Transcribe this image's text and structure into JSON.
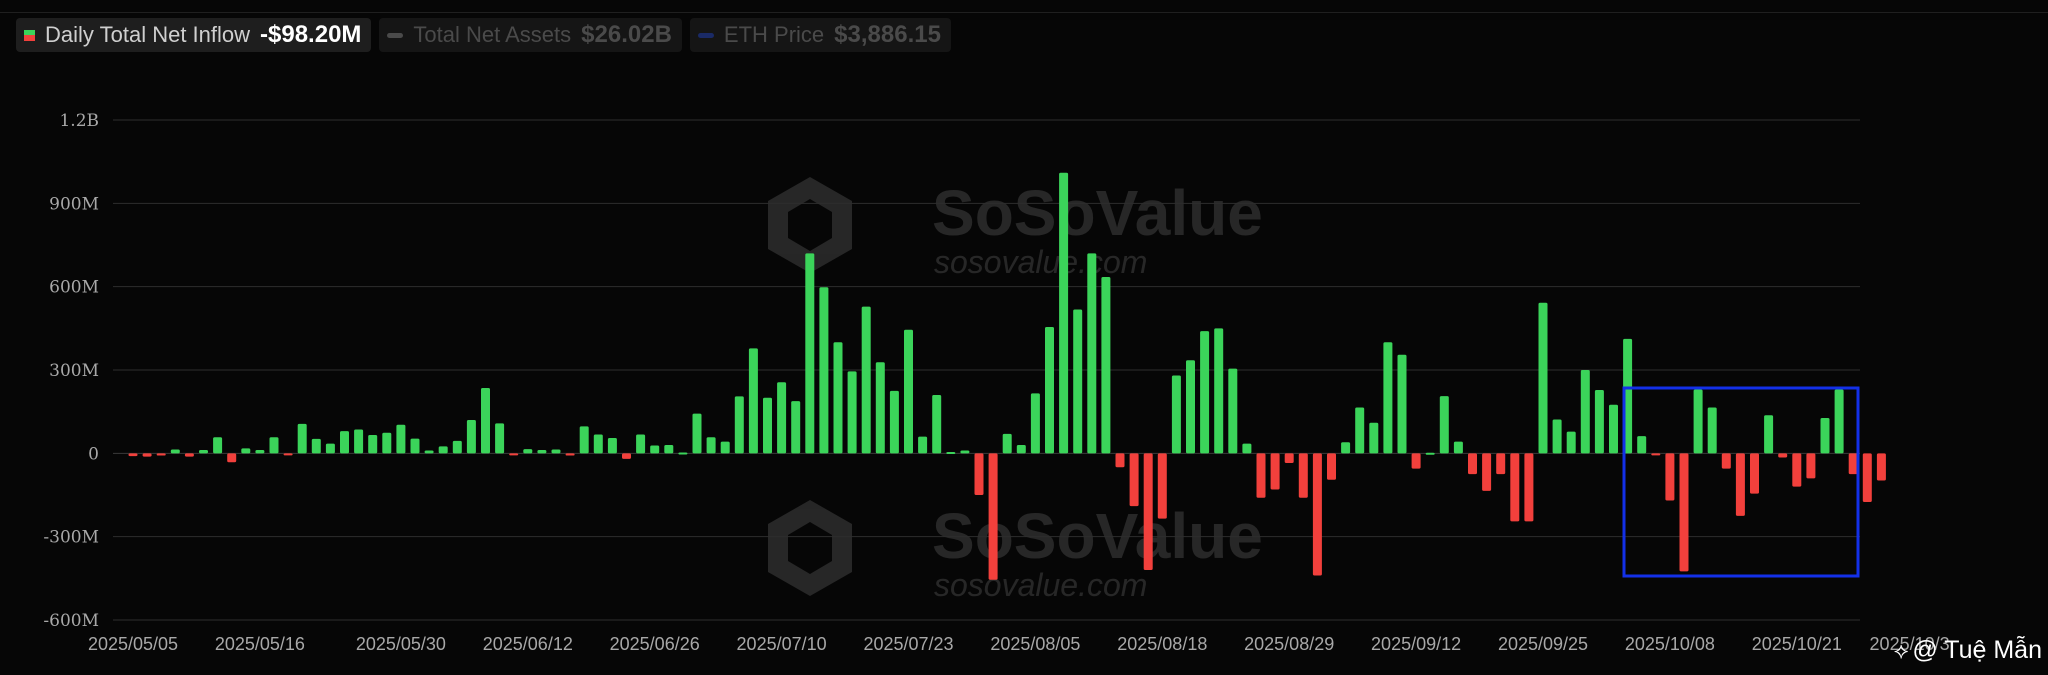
{
  "legend": [
    {
      "label": "Daily Total Net Inflow",
      "value": "-$98.20M",
      "active": true
    },
    {
      "label": "Total Net Assets",
      "value": "$26.02B",
      "active": false
    },
    {
      "label": "ETH Price",
      "value": "$3,886.15",
      "active": false
    }
  ],
  "watermark": {
    "brand": "SoSoValue",
    "site": "sosovalue.com"
  },
  "credit": {
    "icon": "binance-diamond-icon",
    "text": "@ Tuệ Mẫn"
  },
  "colors": {
    "positive": "#3bd45a",
    "negative": "#f2403c",
    "highlight": "#1330e8",
    "background": "#060606",
    "grid": "#2e2e2e",
    "tick": "#a8a8a8"
  },
  "chart_data": {
    "type": "bar",
    "title": "",
    "xlabel": "",
    "ylabel": "",
    "ylim": [
      -600000000,
      1200000000
    ],
    "yticks": [
      {
        "value": 1200000000,
        "label": "1.2B"
      },
      {
        "value": 900000000,
        "label": "900M"
      },
      {
        "value": 600000000,
        "label": "600M"
      },
      {
        "value": 300000000,
        "label": "300M"
      },
      {
        "value": 0,
        "label": "0"
      },
      {
        "value": -300000000,
        "label": "-300M"
      },
      {
        "value": -600000000,
        "label": "-600M"
      }
    ],
    "xticks": [
      {
        "index": 0,
        "label": "2025/05/05"
      },
      {
        "index": 9,
        "label": "2025/05/16"
      },
      {
        "index": 19,
        "label": "2025/05/30"
      },
      {
        "index": 28,
        "label": "2025/06/12"
      },
      {
        "index": 37,
        "label": "2025/06/26"
      },
      {
        "index": 46,
        "label": "2025/07/10"
      },
      {
        "index": 55,
        "label": "2025/07/23"
      },
      {
        "index": 64,
        "label": "2025/08/05"
      },
      {
        "index": 73,
        "label": "2025/08/18"
      },
      {
        "index": 82,
        "label": "2025/08/29"
      },
      {
        "index": 91,
        "label": "2025/09/12"
      },
      {
        "index": 100,
        "label": "2025/09/25"
      },
      {
        "index": 109,
        "label": "2025/10/08"
      },
      {
        "index": 118,
        "label": "2025/10/21"
      },
      {
        "index": 126,
        "label": "2025/10/3"
      }
    ],
    "values": [
      -10,
      -12,
      -8,
      14,
      -12,
      12,
      58,
      -32,
      18,
      12,
      58,
      -3,
      106,
      52,
      35,
      80,
      86,
      66,
      74,
      103,
      53,
      10,
      25,
      45,
      120,
      235,
      108,
      -3,
      15,
      12,
      14,
      -8,
      97,
      68,
      55,
      -20,
      68,
      28,
      30,
      3,
      143,
      58,
      42,
      205,
      378,
      200,
      256,
      188,
      720,
      598,
      400,
      295,
      528,
      328,
      225,
      445,
      60,
      210,
      5,
      10,
      -150,
      -455,
      70,
      30,
      216,
      455,
      1010,
      518,
      720,
      635,
      -50,
      -190,
      -420,
      -235,
      280,
      335,
      440,
      450,
      305,
      35,
      -160,
      -130,
      -35,
      -160,
      -440,
      -95,
      40,
      165,
      110,
      400,
      355,
      -55,
      2,
      206,
      42,
      -75,
      -135,
      -75,
      -245,
      -245,
      542,
      122,
      78,
      300,
      228,
      175,
      412,
      62,
      -5,
      -170,
      -425,
      230,
      165,
      -55,
      -225,
      -145,
      137,
      -15,
      -120,
      -90,
      127,
      230,
      -75,
      -175,
      -98
    ],
    "unit": "M USD"
  }
}
